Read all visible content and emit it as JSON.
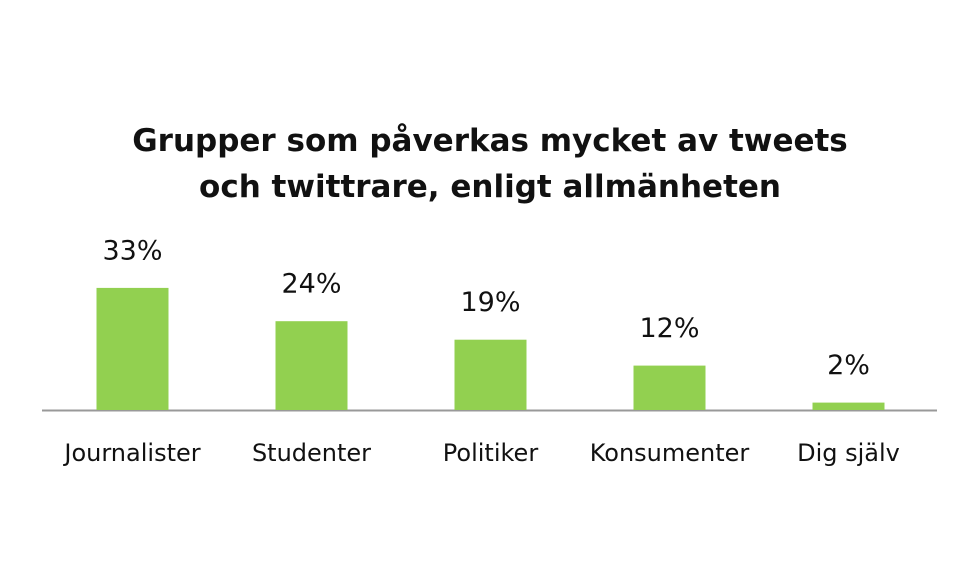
{
  "chart_data": {
    "type": "bar",
    "title": "Grupper som påverkas mycket av tweets och twittrare, enligt allmänheten",
    "categories": [
      "Journalister",
      "Studenter",
      "Politiker",
      "Konsumenter",
      "Dig själv"
    ],
    "values": [
      33,
      24,
      19,
      12,
      2
    ],
    "value_labels": [
      "33%",
      "24%",
      "19%",
      "12%",
      "2%"
    ],
    "color": "#92d050"
  }
}
